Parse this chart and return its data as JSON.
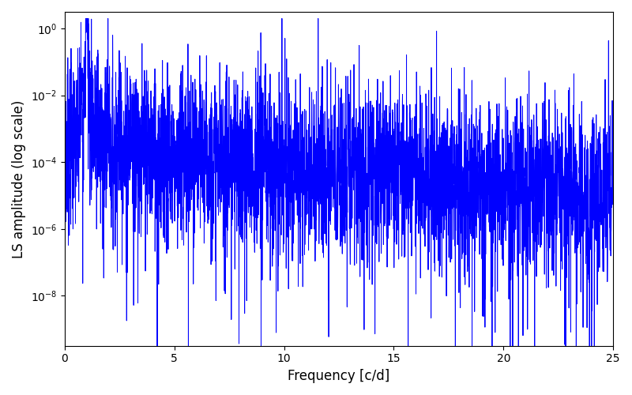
{
  "line_color": "#0000ff",
  "xlabel": "Frequency [c/d]",
  "ylabel": "LS amplitude (log scale)",
  "xlim": [
    0,
    25
  ],
  "ylim_log": [
    -9.5,
    0.5
  ],
  "line_width": 0.7,
  "figsize": [
    8.0,
    5.0
  ],
  "dpi": 100,
  "background_color": "#ffffff",
  "peak_freq": 1.0,
  "peak_amp": 1.0,
  "seed": 7
}
